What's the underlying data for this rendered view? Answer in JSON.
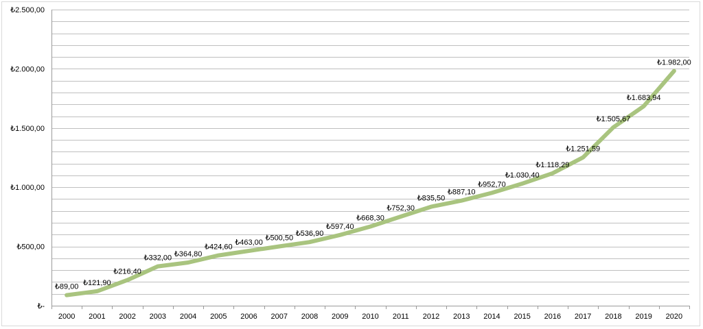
{
  "chart_data": {
    "type": "line",
    "title": "",
    "xlabel": "",
    "ylabel": "",
    "categories": [
      "2000",
      "2001",
      "2002",
      "2003",
      "2004",
      "2005",
      "2006",
      "2007",
      "2008",
      "2009",
      "2010",
      "2011",
      "2012",
      "2013",
      "2014",
      "2015",
      "2016",
      "2017",
      "2018",
      "2019",
      "2020"
    ],
    "series": [
      {
        "values": [
          89.0,
          121.9,
          216.4,
          332.0,
          364.8,
          424.6,
          463.0,
          500.5,
          536.9,
          597.4,
          668.3,
          752.3,
          835.5,
          887.1,
          952.7,
          1030.4,
          1118.29,
          1251.59,
          1505.67,
          1683.94,
          1982.0
        ],
        "labels": [
          "₺89,00",
          "₺121,90",
          "₺216,40",
          "₺332,00",
          "₺364,80",
          "₺424,60",
          "₺463,00",
          "₺500,50",
          "₺536,90",
          "₺597,40",
          "₺668,30",
          "₺752,30",
          "₺835,50",
          "₺887,10",
          "₺952,70",
          "₺1.030,40",
          "₺1.118,29",
          "₺1.251,59",
          "₺1.505,67",
          "₺1.683,94",
          "₺1.982,00"
        ],
        "color": "#a9c47f"
      }
    ],
    "ylim": [
      0,
      2500
    ],
    "yticks": [
      0,
      500,
      1000,
      1500,
      2000,
      2500
    ],
    "ytick_labels": [
      "₺-",
      "₺500,00",
      "₺1.000,00",
      "₺1.500,00",
      "₺2.000,00",
      "₺2.500,00"
    ],
    "minor_grid_step": 100,
    "grid": true,
    "legend": "none"
  }
}
